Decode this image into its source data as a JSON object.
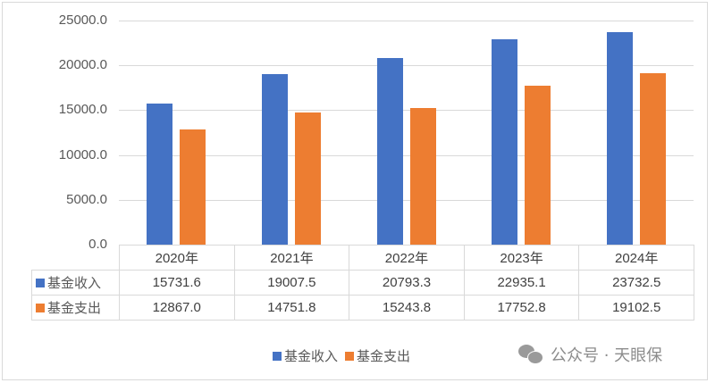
{
  "chart_data": {
    "type": "bar",
    "title": "",
    "xlabel": "",
    "ylabel": "",
    "categories": [
      "2020年",
      "2021年",
      "2022年",
      "2023年",
      "2024年"
    ],
    "series": [
      {
        "name": "基金收入",
        "color": "#4472c4",
        "values": [
          15731.6,
          19007.5,
          20793.3,
          22935.1,
          23732.5
        ]
      },
      {
        "name": "基金支出",
        "color": "#ed7d31",
        "values": [
          12867.0,
          14751.8,
          15243.8,
          17752.8,
          19102.5
        ]
      }
    ],
    "ylim": [
      0,
      25000
    ],
    "yticks": [
      "0.0",
      "5000.0",
      "10000.0",
      "15000.0",
      "20000.0",
      "25000.0"
    ],
    "grid": true,
    "legend_position": "bottom",
    "data_table": true
  },
  "table": {
    "headers": [
      "2020年",
      "2021年",
      "2022年",
      "2023年",
      "2024年"
    ],
    "rows": [
      {
        "label": "基金收入",
        "values": [
          "15731.6",
          "19007.5",
          "20793.3",
          "22935.1",
          "23732.5"
        ]
      },
      {
        "label": "基金支出",
        "values": [
          "12867.0",
          "14751.8",
          "15243.8",
          "17752.8",
          "19102.5"
        ]
      }
    ]
  },
  "legend": {
    "items": [
      {
        "label": "基金收入",
        "color": "#4472c4"
      },
      {
        "label": "基金支出",
        "color": "#ed7d31"
      }
    ]
  },
  "watermark": {
    "text": "公众号 · 天眼保"
  }
}
